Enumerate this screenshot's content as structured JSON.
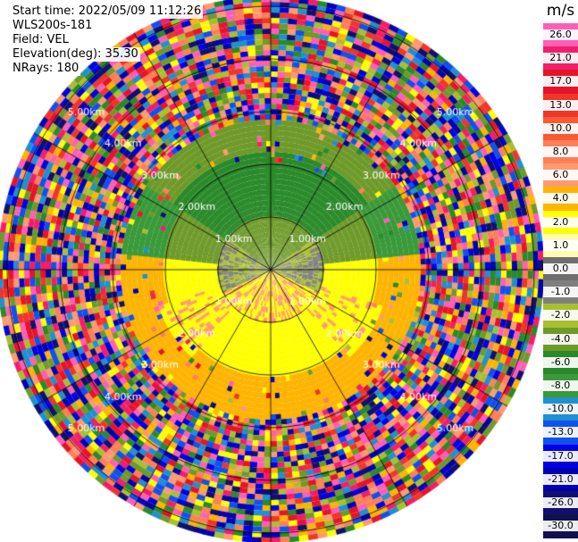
{
  "info": {
    "start_time": "Start time: 2022/05/09 11:12:26",
    "instrument": "WLS200s-181",
    "field": "Field: VEL",
    "elevation": "Elevation(deg): 35.30",
    "nrays": "NRays: 180"
  },
  "colorbar": {
    "unit": "m/s",
    "ticks": [
      "26.0",
      "21.0",
      "17.0",
      "13.0",
      "10.0",
      "8.0",
      "6.0",
      "4.0",
      "2.0",
      "1.0",
      "0.0",
      "-1.0",
      "-2.0",
      "-4.0",
      "-6.0",
      "-8.0",
      "-10.0",
      "-13.0",
      "-17.0",
      "-21.0",
      "-26.0",
      "-30.0"
    ],
    "colors": [
      "#ff5eb8",
      "#f21e6a",
      "#e5142a",
      "#f0352a",
      "#f85a32",
      "#ff7f57",
      "#ff9a6e",
      "#ffb400",
      "#ffff00",
      "#fffbb0",
      "#6e6e6e",
      "#7f7f7f",
      "#a8c030",
      "#6e9a2a",
      "#2a8a2a",
      "#3a9a3a",
      "#2090d0",
      "#1050f0",
      "#0000e0",
      "#0000b0",
      "#101070",
      "#101050"
    ]
  },
  "range_rings": [
    {
      "top": "1.00km",
      "bottom": "1.00km"
    },
    {
      "top": "2.00km",
      "bottom": "2.00km"
    },
    {
      "top": "3.00km",
      "bottom": "3.00km"
    },
    {
      "top": "4.00km",
      "bottom": "4.00km"
    },
    {
      "top": "5.00km",
      "bottom": "5.00km"
    }
  ]
}
